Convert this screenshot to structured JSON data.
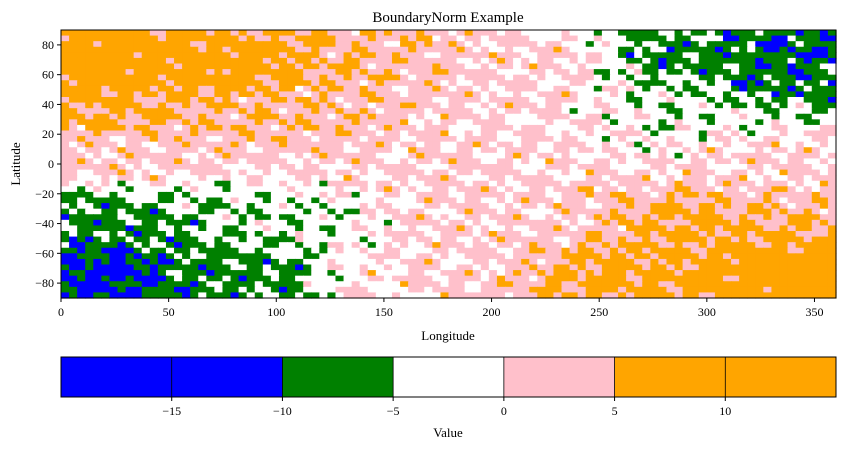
{
  "chart_data": {
    "type": "heatmap",
    "title": "BoundaryNorm Example",
    "xlabel": "Longitude",
    "ylabel": "Latitude",
    "xlim": [
      0,
      360
    ],
    "ylim": [
      -90,
      90
    ],
    "xticks": [
      0,
      50,
      100,
      150,
      200,
      250,
      300,
      350
    ],
    "yticks": [
      -80,
      -60,
      -40,
      -20,
      0,
      20,
      40,
      60,
      80
    ],
    "norm": "BoundaryNorm",
    "boundaries": [
      -20,
      -15,
      -10,
      -5,
      0,
      5,
      10,
      15
    ],
    "bins": [
      {
        "range": [
          -20,
          -15
        ],
        "color": "#0000ff"
      },
      {
        "range": [
          -15,
          -10
        ],
        "color": "#0000ff"
      },
      {
        "range": [
          -10,
          -5
        ],
        "color": "#008000"
      },
      {
        "range": [
          -5,
          0
        ],
        "color": "#ffffff"
      },
      {
        "range": [
          0,
          5
        ],
        "color": "#ffc0cb"
      },
      {
        "range": [
          5,
          10
        ],
        "color": "#ffa500"
      },
      {
        "range": [
          10,
          15
        ],
        "color": "#ffa500"
      }
    ],
    "colorbar": {
      "label": "Value",
      "orientation": "horizontal",
      "ticks": [
        -15,
        -10,
        -5,
        0,
        5,
        10
      ],
      "tick_labels": [
        "−15",
        "−10",
        "−5",
        "0",
        "5",
        "10"
      ]
    },
    "field_description": "Noisy field. Northwest quadrant mostly orange (5 to 15); central band mixed pink and white (-5 to 5); northeast green (-10 to -5) with blue patches; southwest green with blue patches at lower left; southeast orange.",
    "field_anchors": [
      {
        "lon": 20,
        "lat": 70,
        "value": 10
      },
      {
        "lon": 80,
        "lat": 65,
        "value": 8
      },
      {
        "lon": 150,
        "lat": 75,
        "value": 4
      },
      {
        "lon": 230,
        "lat": 70,
        "value": 1
      },
      {
        "lon": 280,
        "lat": 75,
        "value": -7
      },
      {
        "lon": 340,
        "lat": 75,
        "value": -9
      },
      {
        "lon": 330,
        "lat": 55,
        "value": -8
      },
      {
        "lon": 20,
        "lat": 35,
        "value": 6
      },
      {
        "lon": 100,
        "lat": 35,
        "value": 4
      },
      {
        "lon": 200,
        "lat": 40,
        "value": 1
      },
      {
        "lon": 300,
        "lat": 35,
        "value": -3
      },
      {
        "lon": 20,
        "lat": 5,
        "value": 2
      },
      {
        "lon": 180,
        "lat": 0,
        "value": 1
      },
      {
        "lon": 330,
        "lat": 5,
        "value": 1
      },
      {
        "lon": 20,
        "lat": -35,
        "value": -7
      },
      {
        "lon": 100,
        "lat": -40,
        "value": -4
      },
      {
        "lon": 200,
        "lat": -40,
        "value": 1
      },
      {
        "lon": 300,
        "lat": -40,
        "value": 6
      },
      {
        "lon": 15,
        "lat": -75,
        "value": -12
      },
      {
        "lon": 80,
        "lat": -75,
        "value": -7
      },
      {
        "lon": 170,
        "lat": -75,
        "value": 1
      },
      {
        "lon": 260,
        "lat": -75,
        "value": 7
      },
      {
        "lon": 340,
        "lat": -75,
        "value": 10
      }
    ]
  }
}
